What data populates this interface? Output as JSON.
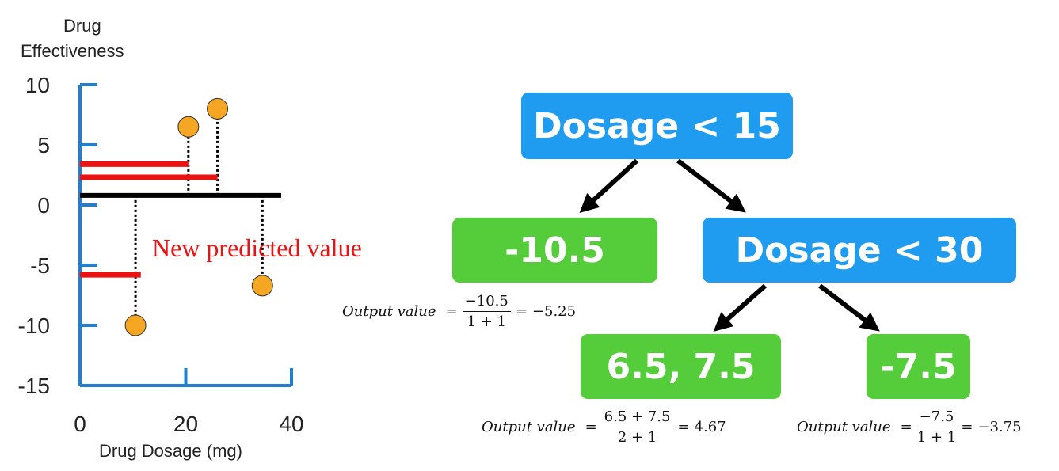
{
  "chart_data": {
    "type": "scatter",
    "title_line1": "Drug",
    "title_line2": "Effectiveness",
    "xlabel": "Drug Dosage (mg)",
    "xlim": [
      0,
      40
    ],
    "ylim": [
      -15,
      10
    ],
    "xticks": [
      "0",
      "20",
      "40"
    ],
    "yticks": [
      "10",
      "5",
      "0",
      "-5",
      "-10",
      "-15"
    ],
    "points": [
      {
        "x": 10.5,
        "y": -10
      },
      {
        "x": 20.5,
        "y": 6.5
      },
      {
        "x": 26,
        "y": 8
      },
      {
        "x": 34.5,
        "y": -6.7
      }
    ],
    "baseline": 0.8,
    "predictions": [
      {
        "x": 20.5,
        "y": 3.4
      },
      {
        "x": 26,
        "y": 2.3
      },
      {
        "x": 11.5,
        "y": -5.8
      }
    ],
    "annotation": "New predicted value",
    "colors": {
      "axis": "#1f7fd0",
      "point": "#f5a623",
      "prediction": "#ee1111",
      "annotation": "#ee1111"
    }
  },
  "tree": {
    "root": "Dosage < 15",
    "left_leaf": "-10.5",
    "right_node": "Dosage < 30",
    "right_left_leaf": "6.5, 7.5",
    "right_right_leaf": "-7.5"
  },
  "formulas": {
    "f1": {
      "lhs": "Output value",
      "num": "−10.5",
      "den": "1 + 1",
      "result": "−5.25"
    },
    "f2": {
      "lhs": "Output value",
      "num": "6.5 + 7.5",
      "den": "2 + 1",
      "result": "4.67"
    },
    "f3": {
      "lhs": "Output value",
      "num": "−7.5",
      "den": "1 + 1",
      "result": "−3.75"
    }
  },
  "colors": {
    "node_blue": "#1f9cf0",
    "node_green": "#55cc3a"
  }
}
